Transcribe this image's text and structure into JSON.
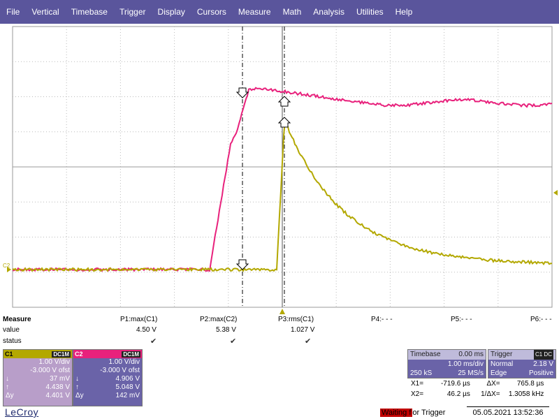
{
  "menu": [
    "File",
    "Vertical",
    "Timebase",
    "Trigger",
    "Display",
    "Cursors",
    "Measure",
    "Math",
    "Analysis",
    "Utilities",
    "Help"
  ],
  "colors": {
    "c1": "#b3a800",
    "c2": "#e8217c",
    "menu_bg": "#5a559c"
  },
  "trace_label": "C2",
  "measure": {
    "title": "Measure",
    "row_value": "value",
    "row_status": "status",
    "params": [
      {
        "name": "P1:max(C1)",
        "value": "4.50 V",
        "status": "check"
      },
      {
        "name": "P2:max(C2)",
        "value": "5.38 V",
        "status": "check"
      },
      {
        "name": "P3:rms(C1)",
        "value": "1.027 V",
        "status": "check"
      },
      {
        "name": "P4:- - -",
        "value": "",
        "status": ""
      },
      {
        "name": "P5:- - -",
        "value": "",
        "status": ""
      },
      {
        "name": "P6:- - -",
        "value": "",
        "status": ""
      }
    ]
  },
  "c1": {
    "label": "C1",
    "coupling": "DC1M",
    "vdiv": "1.00 V/div",
    "offset": "-3.000 V ofst",
    "down_val": "37 mV",
    "up_val": "4.438 V",
    "dy_label": "Δy",
    "dy": "4.401 V"
  },
  "c2": {
    "label": "C2",
    "coupling": "DC1M",
    "vdiv": "1.00 V/div",
    "offset": "-3.000 V ofst",
    "down_val": "4.906 V",
    "up_val": "5.048 V",
    "dy_label": "Δy",
    "dy": "142 mV"
  },
  "timebase": {
    "label": "Timebase",
    "delay": "0.00 ms",
    "tdiv": "1.00 ms/div",
    "samples": "250 kS",
    "rate": "25 MS/s"
  },
  "trigger": {
    "label": "Trigger",
    "source": "C1 DC",
    "mode": "Normal",
    "level": "2.18 V",
    "type": "Edge",
    "slope": "Positive"
  },
  "cursors": {
    "x1_label": "X1=",
    "x1": "-719.6 µs",
    "dx_label": "ΔX=",
    "dx": "765.8 µs",
    "x2_label": "X2=",
    "x2": "46.2 µs",
    "inv_label": "1/ΔX=",
    "inv_dx": "1.3058 kHz"
  },
  "logo": "LeCroy",
  "status": {
    "text_a": "Waiting f",
    "text_b": "or Trigger"
  },
  "datetime": "05.05.2021 13:52:36"
}
